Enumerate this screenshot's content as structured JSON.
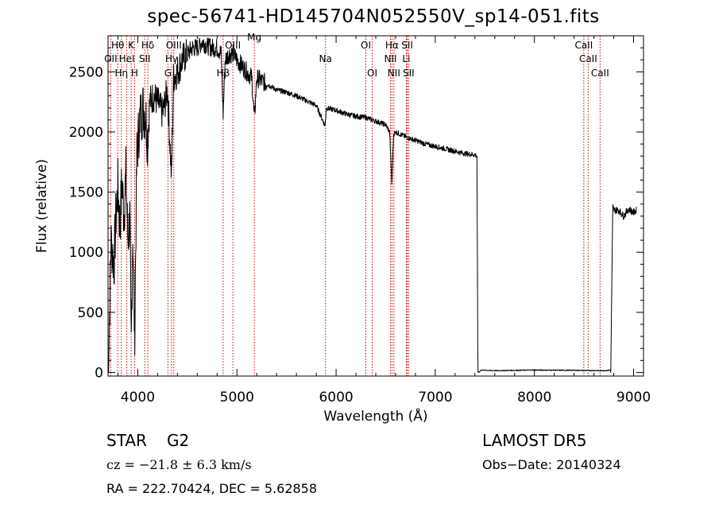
{
  "chart_data": {
    "type": "line",
    "title": "spec-56741-HD145704N052550V_sp14-051.fits",
    "xlabel": "Wavelength (Å)",
    "ylabel": "Flux (relative)",
    "xlim": [
      3700,
      9100
    ],
    "ylim": [
      -30,
      2800
    ],
    "xticks": [
      "4000",
      "5000",
      "6000",
      "7000",
      "8000",
      "9000"
    ],
    "xtick_values": [
      4000,
      5000,
      6000,
      7000,
      8000,
      9000
    ],
    "yticks": [
      "0",
      "500",
      "1000",
      "1500",
      "2000",
      "2500"
    ],
    "ytick_values": [
      0,
      500,
      1000,
      1500,
      2000,
      2500
    ],
    "grid": false,
    "series": [
      {
        "x": [
          3700,
          3710,
          3720,
          3730,
          3760,
          3780,
          3800,
          3820,
          3840,
          3860,
          3880,
          3900,
          3920,
          3933,
          3950,
          3968,
          3990,
          4020,
          4050,
          4080,
          4101,
          4120,
          4160,
          4200,
          4250,
          4300,
          4330,
          4340,
          4360,
          4400,
          4450,
          4500,
          4550,
          4600,
          4650,
          4700,
          4750,
          4800,
          4840,
          4861,
          4880,
          4920,
          4960,
          5000,
          5050,
          5100,
          5150,
          5175,
          5200,
          5300,
          5400,
          5500,
          5600,
          5700,
          5800,
          5890,
          5900,
          6000,
          6100,
          6200,
          6300,
          6400,
          6500,
          6540,
          6563,
          6580,
          6600,
          6700,
          6800,
          6900,
          7000,
          7100,
          7200,
          7300,
          7400,
          7420,
          7430,
          7440,
          7460,
          7600,
          8000,
          8400,
          8700,
          8770,
          8790,
          8800,
          8850,
          8900,
          8950,
          9000,
          9030
        ],
        "y": [
          0,
          300,
          700,
          1100,
          900,
          1300,
          1550,
          1200,
          1600,
          1300,
          1650,
          1100,
          1300,
          150,
          1200,
          250,
          1800,
          2100,
          2200,
          2150,
          1900,
          2250,
          2300,
          2250,
          2150,
          2350,
          1800,
          1600,
          2450,
          2500,
          2600,
          2650,
          2700,
          2700,
          2750,
          2720,
          2700,
          2700,
          2650,
          2150,
          2600,
          2650,
          2650,
          2600,
          2550,
          2500,
          2450,
          2100,
          2450,
          2400,
          2350,
          2330,
          2300,
          2260,
          2220,
          2050,
          2200,
          2180,
          2150,
          2130,
          2120,
          2090,
          2060,
          2000,
          1550,
          1980,
          2000,
          1960,
          1930,
          1900,
          1880,
          1860,
          1840,
          1820,
          1810,
          1800,
          0,
          0,
          20,
          15,
          20,
          18,
          15,
          20,
          1380,
          1350,
          1350,
          1300,
          1360,
          1330,
          1350
        ]
      }
    ],
    "lines": [
      {
        "label": "Hθ",
        "x": 3798,
        "row": 1
      },
      {
        "label": "OII",
        "x": 3727,
        "row": 2
      },
      {
        "label": "Hη",
        "x": 3835,
        "row": 3
      },
      {
        "label": "HeI",
        "x": 3889,
        "row": 2
      },
      {
        "label": "K",
        "x": 3933,
        "row": 1
      },
      {
        "label": "H",
        "x": 3968,
        "row": 3
      },
      {
        "label": "Hδ",
        "x": 4101,
        "row": 1
      },
      {
        "label": "SII",
        "x": 4070,
        "row": 2
      },
      {
        "label": "OIII",
        "x": 4363,
        "row": 1
      },
      {
        "label": "Hγ",
        "x": 4340,
        "row": 2
      },
      {
        "label": "G",
        "x": 4304,
        "row": 3
      },
      {
        "label": "Hβ",
        "x": 4861,
        "row": 3
      },
      {
        "label": "OIII",
        "x": 4959,
        "row": 1
      },
      {
        "label": "Mg",
        "x": 5175,
        "row": 0
      },
      {
        "label": "Na",
        "x": 5893,
        "row": 2
      },
      {
        "label": "OI",
        "x": 6300,
        "row": 1
      },
      {
        "label": "OI",
        "x": 6364,
        "row": 3
      },
      {
        "label": "Hα",
        "x": 6563,
        "row": 1
      },
      {
        "label": "NII",
        "x": 6548,
        "row": 2
      },
      {
        "label": "NII",
        "x": 6583,
        "row": 3
      },
      {
        "label": "SII",
        "x": 6717,
        "row": 1
      },
      {
        "label": "Li",
        "x": 6708,
        "row": 2
      },
      {
        "label": "SII",
        "x": 6731,
        "row": 3
      },
      {
        "label": "CaII",
        "x": 8498,
        "row": 1
      },
      {
        "label": "CaII",
        "x": 8542,
        "row": 2
      },
      {
        "label": "CaII",
        "x": 8662,
        "row": 3
      }
    ],
    "line_color": "#cc0000",
    "spectrum_color": "#000000"
  },
  "info": {
    "object_class": "STAR",
    "subclass": "G2",
    "survey": "LAMOST DR5",
    "cz": "cz = −21.8 ± 6.3 km/s",
    "obs_date": "Obs−Date: 20140324",
    "coords": "RA = 222.70424, DEC =   5.62858"
  }
}
